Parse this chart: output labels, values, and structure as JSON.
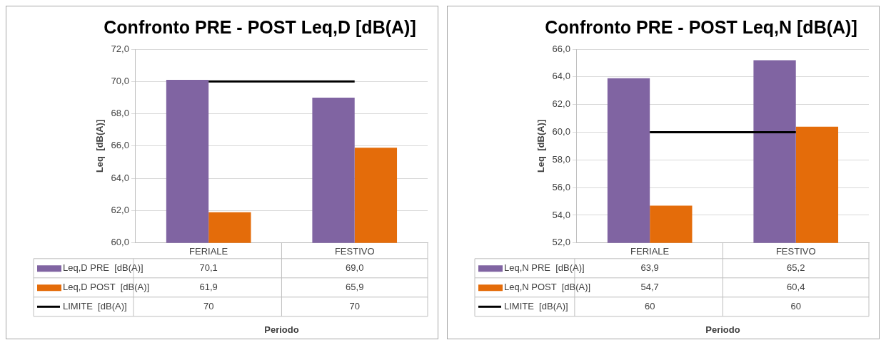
{
  "chart_data": [
    {
      "type": "bar",
      "title": "Confronto PRE - POST Leq,D [dB(A)]",
      "xlabel": "Periodo",
      "ylabel": "Leq  [dB(A)]",
      "categories": [
        "FERIALE",
        "FESTIVO"
      ],
      "series": [
        {
          "name": "Leq,D PRE  [dB(A)]",
          "color": "#8064a2",
          "values": [
            70.1,
            69.0
          ],
          "value_labels": [
            "70,1",
            "69,0"
          ]
        },
        {
          "name": "Leq,D POST  [dB(A)]",
          "color": "#e46c0a",
          "values": [
            61.9,
            65.9
          ],
          "value_labels": [
            "61,9",
            "65,9"
          ]
        },
        {
          "name": "LIMITE  [dB(A)]",
          "type": "line",
          "color": "#000000",
          "values": [
            70,
            70
          ],
          "value_labels": [
            "70",
            "70"
          ]
        }
      ],
      "ylim": [
        60,
        72
      ],
      "yticks": [
        {
          "value": 60,
          "label": "60,0"
        },
        {
          "value": 62,
          "label": "62,0"
        },
        {
          "value": 64,
          "label": "64,0"
        },
        {
          "value": 66,
          "label": "66,0"
        },
        {
          "value": 68,
          "label": "68,0"
        },
        {
          "value": 70,
          "label": "70,0"
        },
        {
          "value": 72,
          "label": "72,0"
        }
      ],
      "grid": "y",
      "legend": "bottom"
    },
    {
      "type": "bar",
      "title": "Confronto PRE - POST Leq,N [dB(A)]",
      "xlabel": "Periodo",
      "ylabel": "Leq  [dB(A)]",
      "categories": [
        "FERIALE",
        "FESTIVO"
      ],
      "series": [
        {
          "name": "Leq,N PRE  [dB(A)]",
          "color": "#8064a2",
          "values": [
            63.9,
            65.2
          ],
          "value_labels": [
            "63,9",
            "65,2"
          ]
        },
        {
          "name": "Leq,N POST  [dB(A)]",
          "color": "#e46c0a",
          "values": [
            54.7,
            60.4
          ],
          "value_labels": [
            "54,7",
            "60,4"
          ]
        },
        {
          "name": "LIMITE  [dB(A)]",
          "type": "line",
          "color": "#000000",
          "values": [
            60,
            60
          ],
          "value_labels": [
            "60",
            "60"
          ]
        }
      ],
      "ylim": [
        52,
        66
      ],
      "yticks": [
        {
          "value": 52,
          "label": "52,0"
        },
        {
          "value": 54,
          "label": "54,0"
        },
        {
          "value": 56,
          "label": "56,0"
        },
        {
          "value": 58,
          "label": "58,0"
        },
        {
          "value": 60,
          "label": "60,0"
        },
        {
          "value": 62,
          "label": "62,0"
        },
        {
          "value": 64,
          "label": "64,0"
        },
        {
          "value": 66,
          "label": "66,0"
        }
      ],
      "grid": "y",
      "legend": "bottom"
    }
  ]
}
